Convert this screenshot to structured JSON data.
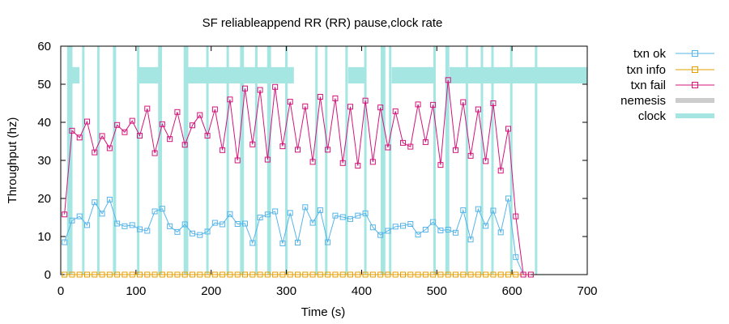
{
  "chart_data": {
    "type": "line",
    "title": "SF reliableappend RR (RR) pause,clock rate",
    "xlabel": "Time (s)",
    "ylabel": "Throughput (hz)",
    "xlim": [
      0,
      700
    ],
    "ylim": [
      0,
      60
    ],
    "xticks": [
      0,
      100,
      200,
      300,
      400,
      500,
      600,
      700
    ],
    "yticks": [
      0,
      10,
      20,
      30,
      40,
      50,
      60
    ],
    "legend_position": "outside-top-right",
    "colors": {
      "txn_ok": "#56b4e9",
      "txn_info": "#e69f00",
      "txn_fail": "#d4147a",
      "nemesis": "#cccccc",
      "clock": "#a5e6e3"
    },
    "series": [
      {
        "name": "txn ok",
        "key": "txn_ok",
        "x": [
          5,
          15,
          25,
          35,
          45,
          55,
          65,
          75,
          85,
          95,
          105,
          115,
          125,
          135,
          145,
          155,
          165,
          175,
          185,
          195,
          205,
          215,
          225,
          235,
          245,
          255,
          265,
          275,
          285,
          295,
          305,
          315,
          325,
          335,
          345,
          355,
          365,
          375,
          385,
          395,
          405,
          415,
          425,
          435,
          445,
          455,
          465,
          475,
          485,
          495,
          505,
          515,
          525,
          535,
          545,
          555,
          565,
          575,
          585,
          595,
          605,
          615,
          625
        ],
        "values": [
          8.5,
          14.2,
          15.3,
          13,
          19,
          16,
          19.7,
          13.4,
          12.7,
          13,
          11.9,
          11.5,
          16.6,
          17.3,
          12.7,
          11.2,
          13.2,
          10.8,
          10.4,
          11.3,
          13.6,
          13.2,
          15.9,
          13.3,
          13.4,
          8.3,
          15,
          15.8,
          16.6,
          8.2,
          16.2,
          8.4,
          17.7,
          13.6,
          16.9,
          8.5,
          15.5,
          15.1,
          14.6,
          15.5,
          16.1,
          12.4,
          10.4,
          11.5,
          12.6,
          12.8,
          13.3,
          10.5,
          11.8,
          13.8,
          11.6,
          11.8,
          11,
          16.9,
          9.2,
          17.2,
          12.8,
          16.8,
          11.1,
          20,
          4.6,
          0,
          0
        ]
      },
      {
        "name": "txn info",
        "key": "txn_info",
        "x": [
          5,
          15,
          25,
          35,
          45,
          55,
          65,
          75,
          85,
          95,
          105,
          115,
          125,
          135,
          145,
          155,
          165,
          175,
          185,
          195,
          205,
          215,
          225,
          235,
          245,
          255,
          265,
          275,
          285,
          295,
          305,
          315,
          325,
          335,
          345,
          355,
          365,
          375,
          385,
          395,
          405,
          415,
          425,
          435,
          445,
          455,
          465,
          475,
          485,
          495,
          505,
          515,
          525,
          535,
          545,
          555,
          565,
          575,
          585,
          595,
          605,
          615,
          625
        ],
        "values": [
          0,
          0,
          0,
          0,
          0,
          0,
          0,
          0,
          0,
          0,
          0,
          0,
          0,
          0,
          0,
          0,
          0,
          0,
          0,
          0,
          0,
          0,
          0,
          0,
          0,
          0,
          0,
          0,
          0,
          0,
          0,
          0,
          0,
          0,
          0,
          0,
          0,
          0,
          0,
          0,
          0,
          0,
          0,
          0,
          0,
          0,
          0,
          0,
          0,
          0,
          0,
          0,
          0,
          0,
          0,
          0,
          0,
          0,
          0,
          0,
          0,
          0,
          0
        ]
      },
      {
        "name": "txn fail",
        "key": "txn_fail",
        "x": [
          5,
          15,
          25,
          35,
          45,
          55,
          65,
          75,
          85,
          95,
          105,
          115,
          125,
          135,
          145,
          155,
          165,
          175,
          185,
          195,
          205,
          215,
          225,
          235,
          245,
          255,
          265,
          275,
          285,
          295,
          305,
          315,
          325,
          335,
          345,
          355,
          365,
          375,
          385,
          395,
          405,
          415,
          425,
          435,
          445,
          455,
          465,
          475,
          485,
          495,
          505,
          515,
          525,
          535,
          545,
          555,
          565,
          575,
          585,
          595,
          605,
          615,
          625
        ],
        "values": [
          15.8,
          37.8,
          36,
          40.2,
          32.1,
          36.4,
          33.2,
          39.3,
          37.4,
          40.4,
          36.5,
          43.6,
          31.9,
          39.5,
          35.6,
          42.7,
          34.1,
          39.2,
          41.9,
          36.5,
          43.4,
          32.7,
          46,
          30,
          48.9,
          34.2,
          48.5,
          30.2,
          49.3,
          33.7,
          45.4,
          32.8,
          44.2,
          29.6,
          46.7,
          32.8,
          46.3,
          29.3,
          44.1,
          28.6,
          45.7,
          29.6,
          43.9,
          33.4,
          42.9,
          34.6,
          33.6,
          44.7,
          34.8,
          44.6,
          28.8,
          51.1,
          32.7,
          45.3,
          31.2,
          43.4,
          29.8,
          45,
          27.3,
          38.3,
          15.3,
          0,
          0
        ]
      }
    ],
    "nemesis_intervals": [],
    "clock_intervals": [
      [
        10,
        25
      ],
      [
        103,
        130
      ],
      [
        168,
        310
      ],
      [
        382,
        405
      ],
      [
        440,
        496
      ],
      [
        517,
        700
      ]
    ],
    "clock_event_times": [
      10,
      12,
      14,
      30,
      50,
      71,
      72,
      103,
      131,
      133,
      165,
      168,
      195,
      222,
      240,
      242,
      260,
      276,
      278,
      300,
      340,
      353,
      380,
      405,
      427,
      430,
      438,
      497,
      513,
      515,
      540,
      560,
      574,
      599,
      632
    ]
  }
}
